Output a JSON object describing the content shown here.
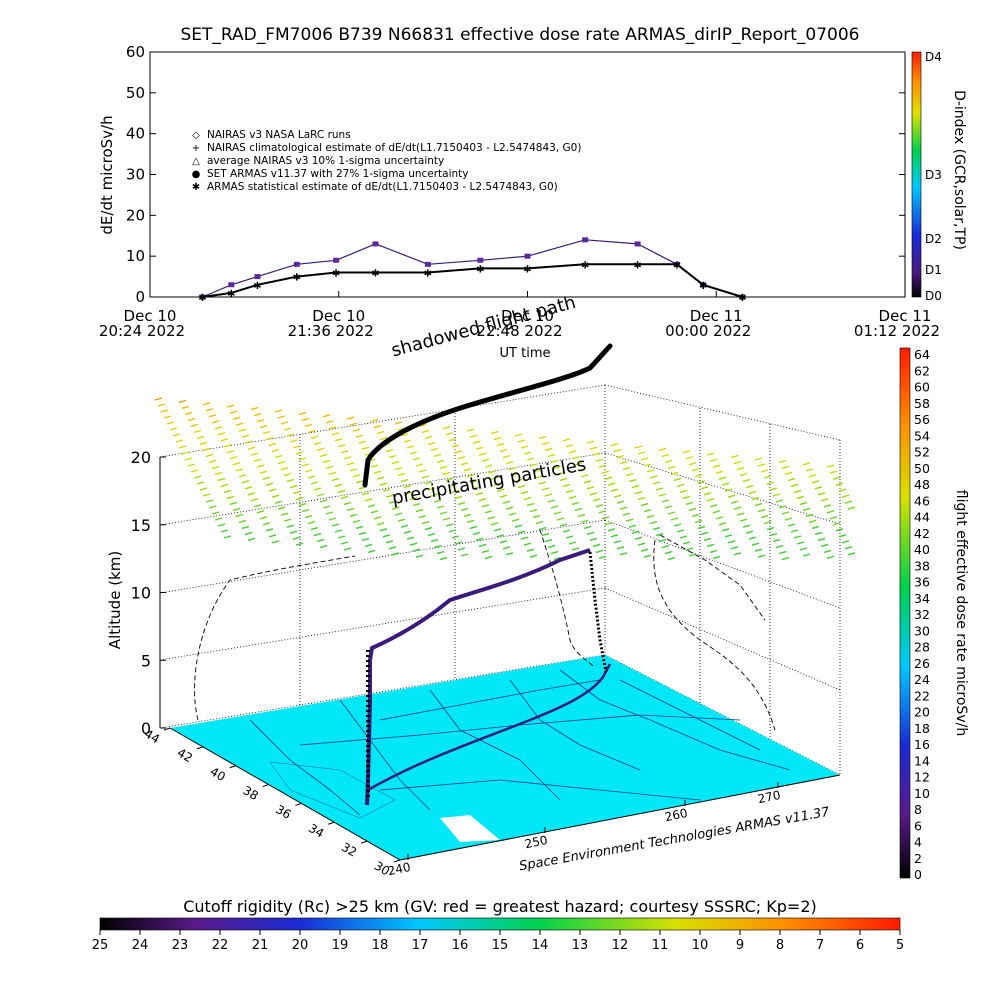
{
  "title": "SET_RAD_FM7006   B739 N66831 effective dose rate ARMAS_dirIP_Report_07006",
  "top_chart": {
    "ylabel": "dE/dt microSv/h",
    "yticks": [
      "0",
      "10",
      "20",
      "30",
      "40",
      "50",
      "60"
    ],
    "xtick_labels": [
      {
        "line1": "Dec 10",
        "line2": "20:24 2022"
      },
      {
        "line1": "Dec 10",
        "line2": "21:36 2022"
      },
      {
        "line1": "Dec 10",
        "line2": "22:48 2022"
      },
      {
        "line1": "Dec 11",
        "line2": "00:00 2022"
      },
      {
        "line1": "Dec 11",
        "line2": "01:12 2022"
      }
    ],
    "xlabel": "UT time",
    "legend": [
      "NAIRAS v3 NASA LaRC runs",
      "NAIRAS climatological estimate of dE/dt(L1.7150403 - L2.5474843, G0)",
      "average NAIRAS v3 10% 1-sigma uncertainty",
      "SET ARMAS v11.37 with 27% 1-sigma uncertainty",
      "ARMAS statistical estimate of dE/dt(L1.7150403 - L2.5474843, G0)"
    ],
    "dindex_label": "D-index (GCR,solar,TP)",
    "dindex_ticks": [
      "D4",
      "D3",
      "D2",
      "D1",
      "D0"
    ]
  },
  "main_chart": {
    "shadowed_label": "shadowed flight path",
    "particles_label": "precipitating particles",
    "zlabel": "Altitude (km)",
    "zticks": [
      "0",
      "5",
      "10",
      "15",
      "20"
    ],
    "lat_ticks": [
      "44",
      "42",
      "40",
      "38",
      "36",
      "34",
      "32",
      "30"
    ],
    "lon_ticks": [
      "240",
      "250",
      "260",
      "270"
    ],
    "credit": "Space Environment Technologies ARMAS v11.37",
    "colorbar_label": "flight effective dose rate microSv/h",
    "colorbar_ticks": [
      "64",
      "62",
      "60",
      "58",
      "56",
      "54",
      "52",
      "50",
      "48",
      "46",
      "44",
      "42",
      "40",
      "38",
      "36",
      "34",
      "32",
      "30",
      "28",
      "26",
      "24",
      "22",
      "20",
      "18",
      "16",
      "14",
      "12",
      "10",
      "8",
      "6",
      "4",
      "2",
      "0"
    ]
  },
  "bottom_bar": {
    "label": "Cutoff rigidity (Rc) >25 km (GV: red = greatest hazard; courtesy SSSRC; Kp=2)",
    "ticks": [
      "25",
      "24",
      "23",
      "22",
      "21",
      "20",
      "19",
      "18",
      "17",
      "16",
      "15",
      "14",
      "13",
      "12",
      "11",
      "10",
      "9",
      "8",
      "7",
      "6",
      "5"
    ]
  },
  "chart_data": {
    "type": "line",
    "x_unit": "UT time (Dec 10-11 2022)",
    "series": [
      {
        "name": "SET ARMAS v11.37 with 27% 1-sigma uncertainty",
        "x": [
          "20:44",
          "20:55",
          "21:05",
          "21:20",
          "21:35",
          "21:50",
          "22:10",
          "22:30",
          "22:48",
          "23:10",
          "23:30",
          "23:45",
          "23:55",
          "00:10"
        ],
        "y": [
          0,
          3,
          5,
          8,
          9,
          13,
          8,
          9,
          10,
          14,
          13,
          8,
          3,
          0
        ]
      },
      {
        "name": "ARMAS statistical estimate of dE/dt(L1.7150403 - L2.5474843, G0)",
        "x": [
          "20:44",
          "20:55",
          "21:05",
          "21:20",
          "21:35",
          "21:50",
          "22:10",
          "22:30",
          "22:48",
          "23:10",
          "23:30",
          "23:45",
          "23:55",
          "00:10"
        ],
        "y": [
          0,
          1,
          3,
          5,
          6,
          6,
          6,
          7,
          7,
          8,
          8,
          8,
          3,
          0
        ]
      }
    ],
    "ylim": [
      0,
      60
    ],
    "dose_colorbar_range": [
      0,
      64
    ],
    "cutoff_rigidity_range": [
      25,
      5
    ],
    "altitude_range_km": [
      0,
      20
    ]
  }
}
